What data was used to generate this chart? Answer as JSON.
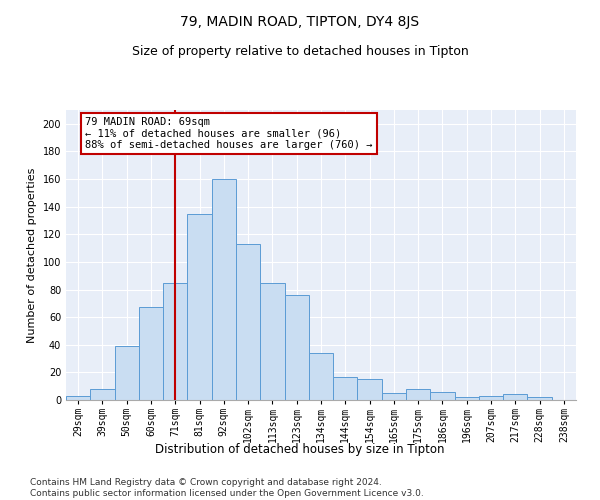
{
  "title": "79, MADIN ROAD, TIPTON, DY4 8JS",
  "subtitle": "Size of property relative to detached houses in Tipton",
  "xlabel": "Distribution of detached houses by size in Tipton",
  "ylabel": "Number of detached properties",
  "bar_labels": [
    "29sqm",
    "39sqm",
    "50sqm",
    "60sqm",
    "71sqm",
    "81sqm",
    "92sqm",
    "102sqm",
    "113sqm",
    "123sqm",
    "134sqm",
    "144sqm",
    "154sqm",
    "165sqm",
    "175sqm",
    "186sqm",
    "196sqm",
    "207sqm",
    "217sqm",
    "228sqm",
    "238sqm"
  ],
  "bar_values": [
    3,
    8,
    39,
    67,
    85,
    135,
    160,
    113,
    85,
    76,
    34,
    17,
    15,
    5,
    8,
    6,
    2,
    3,
    4,
    2,
    0
  ],
  "bar_color": "#c9ddf2",
  "bar_edge_color": "#5b9bd5",
  "vline_x": 4,
  "vline_color": "#c00000",
  "annotation_text": "79 MADIN ROAD: 69sqm\n← 11% of detached houses are smaller (96)\n88% of semi-detached houses are larger (760) →",
  "annotation_box_color": "#ffffff",
  "annotation_box_edge": "#c00000",
  "ylim": [
    0,
    210
  ],
  "yticks": [
    0,
    20,
    40,
    60,
    80,
    100,
    120,
    140,
    160,
    180,
    200
  ],
  "bg_color": "#e8eef8",
  "footer": "Contains HM Land Registry data © Crown copyright and database right 2024.\nContains public sector information licensed under the Open Government Licence v3.0.",
  "title_fontsize": 10,
  "subtitle_fontsize": 9,
  "xlabel_fontsize": 8.5,
  "ylabel_fontsize": 8,
  "footer_fontsize": 6.5,
  "tick_fontsize": 7,
  "ann_fontsize": 7.5
}
